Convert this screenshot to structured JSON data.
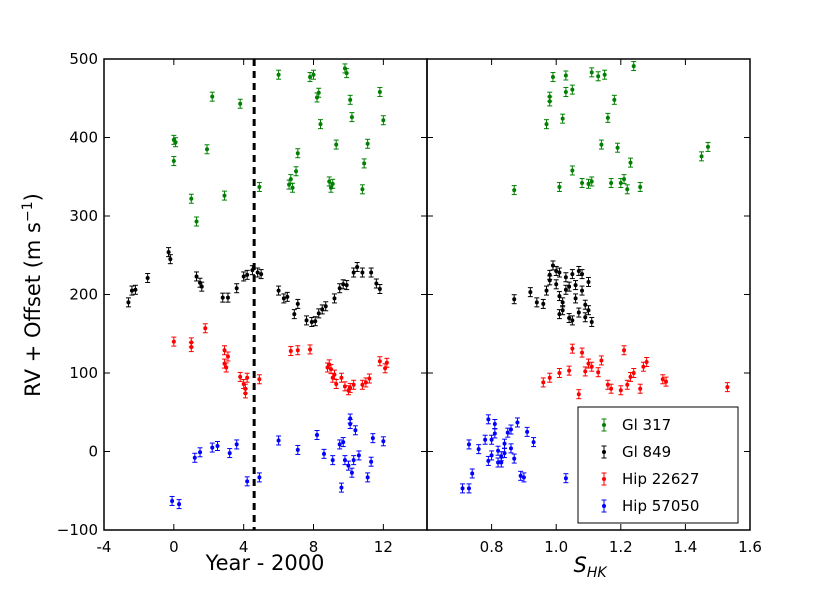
{
  "chart_data": {
    "type": "scatter",
    "ylabel": "RV + Offset (m s",
    "ylabel_sup": "−1",
    "ylabel_end": ")",
    "ylim": [
      -100,
      500
    ],
    "yticks": [
      "−100",
      "0",
      "100",
      "200",
      "300",
      "400",
      "500"
    ],
    "yticks_values": [
      -100,
      0,
      100,
      200,
      300,
      400,
      500
    ],
    "series_meta": [
      {
        "key": "gl317",
        "name": "Gl 317",
        "color": "#008000"
      },
      {
        "key": "gl849",
        "name": "Gl 849",
        "color": "#000000"
      },
      {
        "key": "hip22627",
        "name": "Hip 22627",
        "color": "#ff0000"
      },
      {
        "key": "hip57050",
        "name": "Hip 57050",
        "color": "#0000ff"
      }
    ],
    "panels": [
      {
        "xlabel": "Year - 2000",
        "xlim": [
          -4,
          14.5
        ],
        "xticks": [
          "-4",
          "0",
          "4",
          "8",
          "12"
        ],
        "xticks_values": [
          -4,
          0,
          4,
          8,
          12
        ],
        "vline_x": 4.6,
        "series": {
          "gl317": [
            [
              0,
              397
            ],
            [
              0,
              370
            ],
            [
              0.1,
              394
            ],
            [
              1,
              322
            ],
            [
              1.3,
              293
            ],
            [
              1.9,
              385
            ],
            [
              2.2,
              452
            ],
            [
              2.9,
              326
            ],
            [
              3.8,
              443
            ],
            [
              4.9,
              337
            ],
            [
              6,
              480
            ],
            [
              6.6,
              340
            ],
            [
              6.7,
              347
            ],
            [
              6.8,
              336
            ],
            [
              7,
              357
            ],
            [
              7.1,
              380
            ],
            [
              7.8,
              477
            ],
            [
              8,
              480
            ],
            [
              8.2,
              451
            ],
            [
              8.3,
              457
            ],
            [
              8.4,
              417
            ],
            [
              8.9,
              344
            ],
            [
              9,
              336
            ],
            [
              9.1,
              341
            ],
            [
              9.3,
              391
            ],
            [
              9.8,
              488
            ],
            [
              9.9,
              482
            ],
            [
              10.1,
              448
            ],
            [
              10.2,
              426
            ],
            [
              10.8,
              334
            ],
            [
              10.9,
              367
            ],
            [
              11.1,
              392
            ],
            [
              11.8,
              458
            ],
            [
              12,
              422
            ]
          ],
          "gl849": [
            [
              -2.6,
              190
            ],
            [
              -2.4,
              205
            ],
            [
              -2.2,
              206
            ],
            [
              -1.5,
              221
            ],
            [
              -0.3,
              254
            ],
            [
              -0.2,
              245
            ],
            [
              1.3,
              223
            ],
            [
              1.5,
              215
            ],
            [
              1.6,
              210
            ],
            [
              2.8,
              196
            ],
            [
              3.1,
              196
            ],
            [
              3.6,
              208
            ],
            [
              4,
              223
            ],
            [
              4.2,
              225
            ],
            [
              4.5,
              231
            ],
            [
              4.8,
              228
            ],
            [
              5,
              226
            ],
            [
              6,
              205
            ],
            [
              6.3,
              195
            ],
            [
              6.5,
              197
            ],
            [
              6.9,
              175
            ],
            [
              7.1,
              188
            ],
            [
              7.6,
              167
            ],
            [
              7.9,
              165
            ],
            [
              8.1,
              166
            ],
            [
              8.3,
              176
            ],
            [
              8.5,
              181
            ],
            [
              8.7,
              185
            ],
            [
              9.2,
              195
            ],
            [
              9.5,
              208
            ],
            [
              9.7,
              213
            ],
            [
              9.9,
              212
            ],
            [
              10.3,
              228
            ],
            [
              10.5,
              235
            ],
            [
              10.8,
              228
            ],
            [
              11.3,
              228
            ],
            [
              11.6,
              214
            ],
            [
              11.8,
              207
            ]
          ],
          "hip22627": [
            [
              0,
              140
            ],
            [
              1,
              139
            ],
            [
              1,
              133
            ],
            [
              1.8,
              157
            ],
            [
              2.9,
              129
            ],
            [
              2.9,
              112
            ],
            [
              3,
              107
            ],
            [
              3.1,
              121
            ],
            [
              3.8,
              95
            ],
            [
              4,
              86
            ],
            [
              4.1,
              80
            ],
            [
              4.1,
              74
            ],
            [
              4.2,
              94
            ],
            [
              4.9,
              92
            ],
            [
              6.7,
              128
            ],
            [
              7.1,
              129
            ],
            [
              7.8,
              130
            ],
            [
              8.8,
              107
            ],
            [
              8.9,
              111
            ],
            [
              9,
              105
            ],
            [
              9.1,
              94
            ],
            [
              9.2,
              98
            ],
            [
              9.3,
              86
            ],
            [
              9.6,
              94
            ],
            [
              9.8,
              83
            ],
            [
              10,
              78
            ],
            [
              10.1,
              81
            ],
            [
              10.3,
              85
            ],
            [
              10.8,
              85
            ],
            [
              11,
              88
            ],
            [
              11.2,
              93
            ],
            [
              11.8,
              115
            ],
            [
              12.1,
              106
            ],
            [
              12.2,
              113
            ]
          ],
          "hip57050": [
            [
              -0.1,
              -63
            ],
            [
              0.3,
              -67
            ],
            [
              1.2,
              -8
            ],
            [
              1.5,
              -1
            ],
            [
              2.2,
              5
            ],
            [
              2.5,
              7
            ],
            [
              3.2,
              -2
            ],
            [
              3.6,
              9
            ],
            [
              4.2,
              -38
            ],
            [
              4.9,
              -33
            ],
            [
              6,
              14
            ],
            [
              7.1,
              2
            ],
            [
              8.2,
              21
            ],
            [
              8.6,
              -3
            ],
            [
              9.1,
              -11
            ],
            [
              9.5,
              9
            ],
            [
              9.6,
              -46
            ],
            [
              9.7,
              12
            ],
            [
              9.8,
              -11
            ],
            [
              10,
              -18
            ],
            [
              10.1,
              35
            ],
            [
              10.1,
              42
            ],
            [
              10.2,
              -27
            ],
            [
              10.3,
              -11
            ],
            [
              10.4,
              27
            ],
            [
              10.6,
              -5
            ],
            [
              11.1,
              -33
            ],
            [
              11.3,
              -13
            ],
            [
              11.4,
              17
            ],
            [
              12,
              13
            ]
          ]
        }
      },
      {
        "xlabel": "S",
        "xlabel_sub": "HK",
        "xlim": [
          0.6,
          1.6
        ],
        "xticks": [
          "0.8",
          "1.0",
          "1.2",
          "1.4",
          "1.6"
        ],
        "xticks_values": [
          0.8,
          1.0,
          1.2,
          1.4,
          1.6
        ],
        "series": {
          "gl317": [
            [
              0.87,
              333
            ],
            [
              0.97,
              417
            ],
            [
              0.98,
              452
            ],
            [
              0.98,
              446
            ],
            [
              0.99,
              477
            ],
            [
              1.01,
              337
            ],
            [
              1.02,
              424
            ],
            [
              1.03,
              458
            ],
            [
              1.03,
              479
            ],
            [
              1.05,
              358
            ],
            [
              1.08,
              342
            ],
            [
              1.1,
              341
            ],
            [
              1.11,
              483
            ],
            [
              1.11,
              344
            ],
            [
              1.13,
              478
            ],
            [
              1.14,
              391
            ],
            [
              1.17,
              342
            ],
            [
              1.18,
              448
            ],
            [
              1.19,
              387
            ],
            [
              1.2,
              342
            ],
            [
              1.21,
              347
            ],
            [
              1.22,
              334
            ],
            [
              1.23,
              368
            ],
            [
              1.24,
              491
            ],
            [
              1.26,
              337
            ],
            [
              1.45,
              376
            ],
            [
              1.47,
              388
            ],
            [
              1.15,
              480
            ],
            [
              1.16,
              425
            ],
            [
              1.05,
              461
            ]
          ],
          "gl849": [
            [
              0.87,
              194
            ],
            [
              0.92,
              203
            ],
            [
              0.94,
              190
            ],
            [
              0.96,
              188
            ],
            [
              0.97,
              205
            ],
            [
              0.98,
              225
            ],
            [
              0.99,
              237
            ],
            [
              1,
              230
            ],
            [
              1,
              213
            ],
            [
              1.01,
              198
            ],
            [
              1.02,
              180
            ],
            [
              1.01,
              228
            ],
            [
              1.03,
              206
            ],
            [
              1.03,
              222
            ],
            [
              1.04,
              210
            ],
            [
              1.05,
              167
            ],
            [
              1.05,
              226
            ],
            [
              1.06,
              212
            ],
            [
              1.07,
              177
            ],
            [
              1.07,
              230
            ],
            [
              1.08,
              226
            ],
            [
              1.08,
              205
            ],
            [
              1.09,
              187
            ],
            [
              1.09,
              171
            ],
            [
              1.1,
              216
            ],
            [
              1.1,
              180
            ],
            [
              1.11,
              165
            ],
            [
              0.98,
              218
            ],
            [
              1.01,
              175
            ],
            [
              1.04,
              170
            ],
            [
              1.06,
              195
            ],
            [
              1.02,
              190
            ]
          ],
          "hip22627": [
            [
              0.96,
              88
            ],
            [
              0.98,
              94
            ],
            [
              1.01,
              100
            ],
            [
              1.04,
              103
            ],
            [
              1.05,
              131
            ],
            [
              1.07,
              73
            ],
            [
              1.08,
              126
            ],
            [
              1.09,
              102
            ],
            [
              1.11,
              108
            ],
            [
              1.13,
              101
            ],
            [
              1.14,
              116
            ],
            [
              1.16,
              85
            ],
            [
              1.17,
              80
            ],
            [
              1.2,
              78
            ],
            [
              1.21,
              129
            ],
            [
              1.22,
              85
            ],
            [
              1.23,
              95
            ],
            [
              1.24,
              100
            ],
            [
              1.26,
              80
            ],
            [
              1.27,
              108
            ],
            [
              1.28,
              114
            ],
            [
              1.33,
              92
            ],
            [
              1.34,
              89
            ],
            [
              1.53,
              82
            ],
            [
              1.1,
              112
            ]
          ],
          "hip57050": [
            [
              0.71,
              -47
            ],
            [
              0.73,
              -47
            ],
            [
              0.73,
              9
            ],
            [
              0.74,
              -28
            ],
            [
              0.76,
              3
            ],
            [
              0.78,
              15
            ],
            [
              0.79,
              41
            ],
            [
              0.79,
              -12
            ],
            [
              0.8,
              -5
            ],
            [
              0.81,
              23
            ],
            [
              0.81,
              35
            ],
            [
              0.82,
              -14
            ],
            [
              0.82,
              1
            ],
            [
              0.83,
              -6
            ],
            [
              0.83,
              -14
            ],
            [
              0.84,
              10
            ],
            [
              0.84,
              -2
            ],
            [
              0.85,
              24
            ],
            [
              0.86,
              28
            ],
            [
              0.87,
              -9
            ],
            [
              0.88,
              37
            ],
            [
              0.89,
              -31
            ],
            [
              0.9,
              -33
            ],
            [
              0.91,
              25
            ],
            [
              0.93,
              12
            ],
            [
              1.03,
              -34
            ],
            [
              0.86,
              4
            ],
            [
              0.8,
              15
            ]
          ]
        }
      }
    ],
    "legend_position": "lower-right"
  }
}
